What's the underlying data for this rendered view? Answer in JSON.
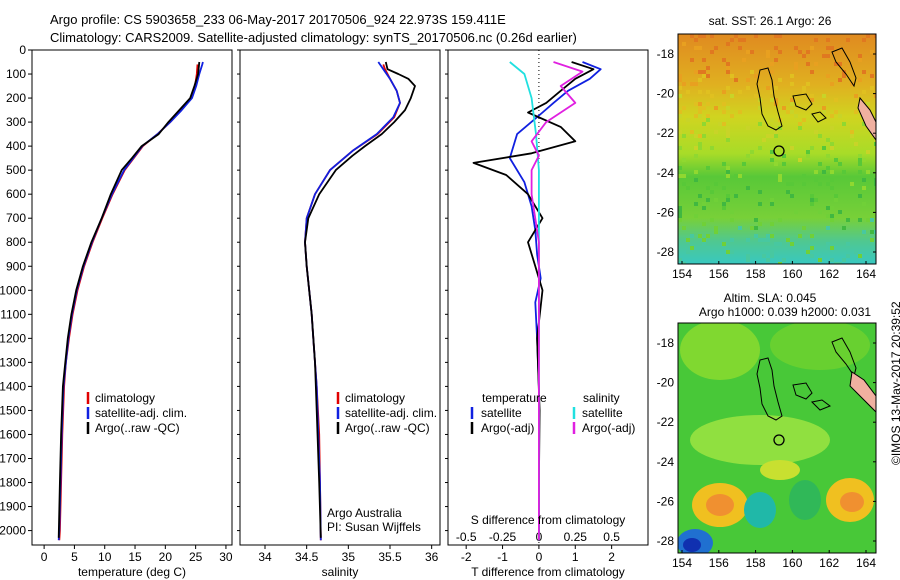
{
  "header": {
    "line1": "Argo profile: CS 5903658_233 06-May-2017 20170506_924 22.973S 159.411E",
    "line2": "Climatology: CARS2009. Satellite-adjusted climatology: synTS_20170506.nc (0.26d earlier)"
  },
  "colors": {
    "climatology": "#e00000",
    "satellite": "#1020e0",
    "argo": "#000000",
    "salinity_sat": "#20e0e0",
    "salinity_argo": "#e020e0"
  },
  "depth_axis": {
    "ylim": [
      2060,
      0
    ],
    "ticks": [
      0,
      100,
      200,
      300,
      400,
      500,
      600,
      700,
      800,
      900,
      1000,
      1100,
      1200,
      1300,
      1400,
      1500,
      1600,
      1700,
      1800,
      1900,
      2000
    ]
  },
  "chart_data": [
    {
      "type": "line",
      "id": "temperature",
      "xlabel": "temperature (deg C)",
      "xlim": [
        -2,
        31
      ],
      "xticks": [
        0,
        5,
        10,
        15,
        20,
        25,
        30
      ],
      "legend": [
        "climatology",
        "satellite-adj. clim.",
        "Argo(..raw -QC)"
      ],
      "series": [
        {
          "name": "climatology",
          "color_key": "climatology",
          "x": [
            25.3,
            25.2,
            24.9,
            24.3,
            22.6,
            20.8,
            18.7,
            16.3,
            13.3,
            11.3,
            9.6,
            8.0,
            6.6,
            5.5,
            4.7,
            4.1,
            3.6,
            3.3,
            3.0,
            2.8,
            2.6,
            2.5
          ],
          "y": [
            60,
            100,
            150,
            200,
            250,
            300,
            350,
            400,
            500,
            600,
            700,
            800,
            900,
            1000,
            1100,
            1200,
            1300,
            1400,
            1600,
            1800,
            2000,
            2040
          ]
        },
        {
          "name": "satellite-adj. clim.",
          "color_key": "satellite",
          "x": [
            26.2,
            26.1,
            25.6,
            25.1,
            24.4,
            22.7,
            20.8,
            18.7,
            16.2,
            13.2,
            11.2,
            9.5,
            7.9,
            6.5,
            5.4,
            4.6,
            4.0,
            3.6,
            3.2,
            2.9,
            2.7,
            2.5,
            2.4
          ],
          "y": [
            50,
            60,
            100,
            150,
            200,
            250,
            300,
            350,
            400,
            500,
            600,
            700,
            800,
            900,
            1000,
            1100,
            1200,
            1300,
            1400,
            1600,
            1800,
            2000,
            2040
          ]
        },
        {
          "name": "Argo(..raw -QC)",
          "color_key": "argo",
          "x": [
            25.6,
            25.4,
            24.8,
            24.1,
            22.3,
            20.5,
            18.9,
            16.1,
            14.5,
            12.8,
            11.0,
            9.5,
            7.8,
            6.4,
            5.3,
            4.5,
            3.9,
            3.5,
            3.1,
            2.8,
            2.6,
            2.4
          ],
          "y": [
            50,
            100,
            150,
            200,
            250,
            300,
            350,
            400,
            450,
            500,
            600,
            700,
            800,
            900,
            1000,
            1100,
            1200,
            1300,
            1400,
            1600,
            1800,
            2030
          ]
        }
      ]
    },
    {
      "type": "line",
      "id": "salinity",
      "xlabel": "salinity",
      "xlim": [
        33.7,
        36.1
      ],
      "xticks": [
        34,
        34.5,
        35,
        35.5,
        36
      ],
      "legend": [
        "climatology",
        "satellite-adj. clim.",
        "Argo(..raw -QC)"
      ],
      "annotation": [
        "Argo Australia",
        "PI: Susan Wijffels"
      ],
      "series": [
        {
          "name": "climatology",
          "color_key": "climatology",
          "x": [
            35.42,
            35.44,
            35.5,
            35.58,
            35.62,
            35.55,
            35.35,
            35.05,
            34.78,
            34.6,
            34.5,
            34.48,
            34.5,
            34.53,
            34.56,
            34.58,
            34.6,
            34.62,
            34.65,
            34.66,
            34.67
          ],
          "y": [
            60,
            80,
            120,
            170,
            220,
            280,
            350,
            420,
            500,
            600,
            700,
            800,
            900,
            1000,
            1100,
            1200,
            1300,
            1400,
            1600,
            1800,
            2040
          ]
        },
        {
          "name": "satellite-adj. clim.",
          "color_key": "satellite",
          "x": [
            35.36,
            35.42,
            35.5,
            35.58,
            35.62,
            35.54,
            35.34,
            35.05,
            34.78,
            34.6,
            34.5,
            34.48,
            34.5,
            34.53,
            34.56,
            34.58,
            34.6,
            34.62,
            34.64,
            34.66,
            34.67
          ],
          "y": [
            50,
            80,
            120,
            170,
            220,
            280,
            350,
            420,
            500,
            600,
            700,
            800,
            900,
            1000,
            1100,
            1200,
            1300,
            1400,
            1600,
            1800,
            2040
          ]
        },
        {
          "name": "Argo(..raw -QC)",
          "color_key": "argo",
          "x": [
            35.45,
            35.47,
            35.6,
            35.72,
            35.8,
            35.75,
            35.68,
            35.55,
            35.4,
            35.2,
            35.05,
            34.85,
            34.65,
            34.52,
            34.48,
            34.5,
            34.53,
            34.56,
            34.6,
            34.62,
            34.65,
            34.67
          ],
          "y": [
            50,
            80,
            100,
            120,
            150,
            200,
            250,
            300,
            350,
            400,
            440,
            500,
            600,
            700,
            800,
            900,
            1000,
            1100,
            1300,
            1500,
            1800,
            2030
          ]
        }
      ]
    },
    {
      "type": "line",
      "id": "difference",
      "xlabel": "T difference from climatology",
      "xlabel_top": "S difference from climatology",
      "xlim": [
        -2.5,
        3
      ],
      "xticks": [
        -2,
        -1,
        0,
        1,
        2
      ],
      "s_xlim": [
        -0.625,
        0.75
      ],
      "s_xticks": [
        -0.5,
        -0.25,
        0,
        0.25,
        0.5
      ],
      "s_ticklabels": [
        "-0.5",
        "-0.25",
        "0",
        "0.25",
        "0.5"
      ],
      "legend_temperature": [
        "temperature",
        "satellite",
        "Argo(-adj)"
      ],
      "legend_salinity": [
        "salinity",
        "satellite",
        "Argo(-adj)"
      ],
      "series": [
        {
          "name": "temperature satellite",
          "color_key": "satellite",
          "x": [
            1.2,
            1.7,
            1.4,
            0.8,
            0.4,
            0.1,
            -0.6,
            -0.8,
            -0.4,
            -0.2,
            -0.1,
            -0.05,
            0.05,
            -0.1,
            -0.05,
            0,
            0,
            0,
            0
          ],
          "y": [
            50,
            80,
            120,
            170,
            220,
            260,
            350,
            450,
            550,
            650,
            750,
            850,
            950,
            1050,
            1200,
            1400,
            1600,
            1800,
            2040
          ]
        },
        {
          "name": "temperature Argo(-adj)",
          "color_key": "argo",
          "x": [
            0.9,
            1.5,
            1.0,
            0.6,
            0.2,
            -0.3,
            0.6,
            1.0,
            -0.2,
            -1.8,
            -0.9,
            -0.3,
            0.1,
            -0.3,
            -0.1,
            0.1,
            -0.05,
            0.02,
            0,
            0
          ],
          "y": [
            50,
            80,
            120,
            170,
            220,
            260,
            320,
            380,
            430,
            470,
            520,
            600,
            700,
            800,
            900,
            1000,
            1200,
            1500,
            1800,
            2040
          ]
        },
        {
          "name": "salinity satellite",
          "color_key": "salinity_sat",
          "x": [
            -0.2,
            -0.1,
            -0.05,
            -0.02,
            0,
            0,
            0,
            0,
            0
          ],
          "y": [
            50,
            100,
            200,
            350,
            500,
            800,
            1200,
            1600,
            2040
          ]
        },
        {
          "name": "salinity Argo(-adj)",
          "color_key": "salinity_argo",
          "x": [
            0.1,
            0.3,
            0.15,
            0.25,
            0.05,
            -0.05,
            0,
            -0.05,
            -0.05,
            0,
            0,
            0
          ],
          "y": [
            50,
            90,
            150,
            220,
            300,
            380,
            440,
            500,
            600,
            800,
            1200,
            2040
          ]
        }
      ]
    }
  ],
  "maps": {
    "sst": {
      "title": "sat. SST: 26.1  Argo: 26",
      "xticks": [
        "154",
        "156",
        "158",
        "160",
        "162",
        "164"
      ],
      "yticks": [
        "-18",
        "-20",
        "-22",
        "-24",
        "-26",
        "-28"
      ]
    },
    "sla": {
      "title1": "Altim. SLA: 0.045",
      "title2": "Argo h1000: 0.039 h2000: 0.031",
      "xticks": [
        "154",
        "156",
        "158",
        "160",
        "162",
        "164"
      ],
      "yticks": [
        "-18",
        "-20",
        "-22",
        "-24",
        "-26",
        "-28"
      ]
    }
  },
  "credit": "©IMOS 13-May-2017 20:39:52"
}
